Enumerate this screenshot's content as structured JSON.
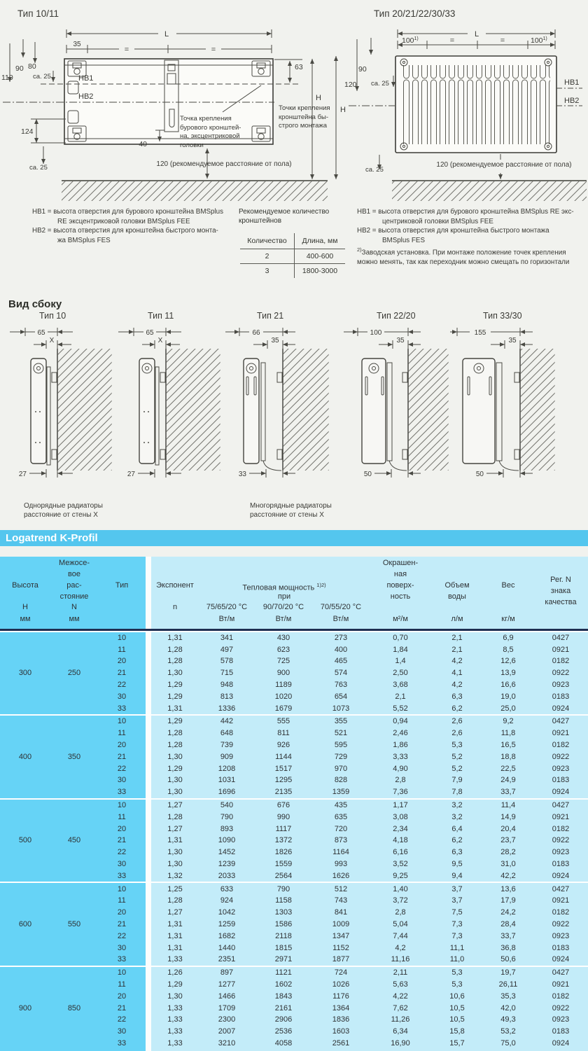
{
  "colors": {
    "section_bar": "#54c6ee",
    "table_left_column": "#66d3f6",
    "table_right_area": "#c3ecf9",
    "header_rule": "#1f2f52"
  },
  "front_views": {
    "left": {
      "title": "Тип 10/11",
      "dim_l": "L",
      "dim_35": "35",
      "eq": "=",
      "dim_90": "90",
      "dim_80": "80",
      "dim_110": "110",
      "dim_ca25": "ca. 25",
      "hb1": "HB1",
      "hb2": "HB2",
      "dim_124": "124",
      "dim_ca25_bottom": "ca. 25",
      "dim_63": "63",
      "dim_40": "40",
      "dim_h": "H",
      "floor_note": "120 (рекомендуемое расстояние от пола)",
      "drill_point_label": [
        "Точка крепления",
        "бурового кронштей-",
        "на, эксцентриковой",
        "головки"
      ],
      "quick_mount_label": [
        "Точки крепления",
        "кронштейна бы-",
        "строго монтажа"
      ]
    },
    "right": {
      "title": "Тип 20/21/22/30/33",
      "dim_l": "L",
      "dim_100": "100",
      "sup_1": "1)",
      "eq": "=",
      "dim_90": "90",
      "dim_120": "120",
      "dim_ca25": "ca. 25",
      "dim_h": "H",
      "hb1": "HB1",
      "hb2": "HB2",
      "dim_ca25_bottom": "ca. 25",
      "floor_note": "120 (рекомендуемое расстояние от пола)"
    }
  },
  "notes": {
    "left_hb1": [
      "HB1 = высота отверстия для бурового кронштейна BMSplus",
      "RE эксцентриковой головки BMSplus FEE"
    ],
    "left_hb2": [
      "HB2 = высота отверстия для кронштейна быстрого монта-",
      "жа BMSplus FES"
    ],
    "right_hb1": [
      "HB1 = высота отверстия для бурового кронштейна BMSplus RE экс-",
      "центриковой головки BMSplus FEE"
    ],
    "right_hb2": [
      "HB2 = высота отверстия для кронштейна быстрого монтажа",
      "BMSplus FES"
    ],
    "factory_sup": "2)",
    "factory": [
      "Заводская установка. При монтаже положение точек крепления",
      "можно менять, так как переходник можно смещать по горизонтали"
    ]
  },
  "bracket_table": {
    "title": [
      "Рекомендуемое количество",
      "кронштейнов"
    ],
    "col_quantity": "Количество",
    "col_length": "Длина, мм",
    "rows": [
      [
        "2",
        "400-600"
      ],
      [
        "3",
        "1800-3000"
      ]
    ]
  },
  "side_views": {
    "heading": "Вид сбоку",
    "items": [
      {
        "title": "Тип 10",
        "dim_top": "65",
        "dim_wall": "X",
        "dim_bottom": "27"
      },
      {
        "title": "Тип 11",
        "dim_top": "65",
        "dim_wall": "X",
        "dim_bottom": "27"
      },
      {
        "title": "Тип 21",
        "dim_top": "66",
        "dim_wall": "35",
        "dim_bottom": "33"
      },
      {
        "title": "Тип 22/20",
        "dim_top": "100",
        "dim_wall": "35",
        "dim_bottom": "50"
      },
      {
        "title": "Тип 33/30",
        "dim_top": "155",
        "dim_wall": "35",
        "dim_bottom": "50"
      }
    ],
    "caption_single": [
      "Однорядные радиаторы",
      "расстояние от стены X"
    ],
    "caption_multi": [
      "Многорядные радиаторы",
      "расстояние от стены X"
    ]
  },
  "section_title": "Logatrend K-Profil",
  "table": {
    "header": {
      "height": "Высота",
      "height_sym": "H",
      "height_unit": "мм",
      "spacing": [
        "Межосе-",
        "вое",
        "рас-",
        "стояние"
      ],
      "spacing_sym": "N",
      "spacing_unit": "мм",
      "type": "Тип",
      "exponent": "Экспонент",
      "exponent_sym": "n",
      "power": "Тепловая мощность",
      "power_sup": "1)2)",
      "power_at": "при",
      "temp_75": "75/65/20 °C",
      "temp_90": "90/70/20 °C",
      "temp_70": "70/55/20 °C",
      "power_unit": "Вт/м",
      "surface": [
        "Окрашен-",
        "ная",
        "поверх-",
        "ность"
      ],
      "surface_unit": "м²/м",
      "volume": [
        "Объем",
        "воды"
      ],
      "volume_unit": "л/м",
      "weight": "Вес",
      "weight_unit": "кг/м",
      "reg": [
        "Рег. N",
        "знака",
        "качества"
      ]
    },
    "groups": [
      {
        "height": "300",
        "spacing": "250",
        "rows": [
          [
            "10",
            "1,31",
            "341",
            "430",
            "273",
            "0,70",
            "2,1",
            "6,9",
            "0427"
          ],
          [
            "11",
            "1,28",
            "497",
            "623",
            "400",
            "1,84",
            "2,1",
            "8,5",
            "0921"
          ],
          [
            "20",
            "1,28",
            "578",
            "725",
            "465",
            "1,4",
            "4,2",
            "12,6",
            "0182"
          ],
          [
            "21",
            "1,30",
            "715",
            "900",
            "574",
            "2,50",
            "4,1",
            "13,9",
            "0922"
          ],
          [
            "22",
            "1,29",
            "948",
            "1189",
            "763",
            "3,68",
            "4,2",
            "16,6",
            "0923"
          ],
          [
            "30",
            "1,29",
            "813",
            "1020",
            "654",
            "2,1",
            "6,3",
            "19,0",
            "0183"
          ],
          [
            "33",
            "1,31",
            "1336",
            "1679",
            "1073",
            "5,52",
            "6,2",
            "25,0",
            "0924"
          ]
        ]
      },
      {
        "height": "400",
        "spacing": "350",
        "rows": [
          [
            "10",
            "1,29",
            "442",
            "555",
            "355",
            "0,94",
            "2,6",
            "9,2",
            "0427"
          ],
          [
            "11",
            "1,28",
            "648",
            "811",
            "521",
            "2,46",
            "2,6",
            "11,8",
            "0921"
          ],
          [
            "20",
            "1,28",
            "739",
            "926",
            "595",
            "1,86",
            "5,3",
            "16,5",
            "0182"
          ],
          [
            "21",
            "1,30",
            "909",
            "1144",
            "729",
            "3,33",
            "5,2",
            "18,8",
            "0922"
          ],
          [
            "22",
            "1,29",
            "1208",
            "1517",
            "970",
            "4,90",
            "5,2",
            "22,5",
            "0923"
          ],
          [
            "30",
            "1,30",
            "1031",
            "1295",
            "828",
            "2,8",
            "7,9",
            "24,9",
            "0183"
          ],
          [
            "33",
            "1,30",
            "1696",
            "2135",
            "1359",
            "7,36",
            "7,8",
            "33,7",
            "0924"
          ]
        ]
      },
      {
        "height": "500",
        "spacing": "450",
        "rows": [
          [
            "10",
            "1,27",
            "540",
            "676",
            "435",
            "1,17",
            "3,2",
            "11,4",
            "0427"
          ],
          [
            "11",
            "1,28",
            "790",
            "990",
            "635",
            "3,08",
            "3,2",
            "14,9",
            "0921"
          ],
          [
            "20",
            "1,27",
            "893",
            "1117",
            "720",
            "2,34",
            "6,4",
            "20,4",
            "0182"
          ],
          [
            "21",
            "1,31",
            "1090",
            "1372",
            "873",
            "4,18",
            "6,2",
            "23,7",
            "0922"
          ],
          [
            "22",
            "1,30",
            "1452",
            "1826",
            "1164",
            "6,16",
            "6,3",
            "28,2",
            "0923"
          ],
          [
            "30",
            "1,30",
            "1239",
            "1559",
            "993",
            "3,52",
            "9,5",
            "31,0",
            "0183"
          ],
          [
            "33",
            "1,32",
            "2033",
            "2564",
            "1626",
            "9,25",
            "9,4",
            "42,2",
            "0924"
          ]
        ]
      },
      {
        "height": "600",
        "spacing": "550",
        "rows": [
          [
            "10",
            "1,25",
            "633",
            "790",
            "512",
            "1,40",
            "3,7",
            "13,6",
            "0427"
          ],
          [
            "11",
            "1,28",
            "924",
            "1158",
            "743",
            "3,72",
            "3,7",
            "17,9",
            "0921"
          ],
          [
            "20",
            "1,27",
            "1042",
            "1303",
            "841",
            "2,8",
            "7,5",
            "24,2",
            "0182"
          ],
          [
            "21",
            "1,31",
            "1259",
            "1586",
            "1009",
            "5,04",
            "7,3",
            "28,4",
            "0922"
          ],
          [
            "22",
            "1,31",
            "1682",
            "2118",
            "1347",
            "7,44",
            "7,3",
            "33,7",
            "0923"
          ],
          [
            "30",
            "1,31",
            "1440",
            "1815",
            "1152",
            "4,2",
            "11,1",
            "36,8",
            "0183"
          ],
          [
            "33",
            "1,33",
            "2351",
            "2971",
            "1877",
            "11,16",
            "11,0",
            "50,6",
            "0924"
          ]
        ]
      },
      {
        "height": "900",
        "spacing": "850",
        "rows": [
          [
            "10",
            "1,26",
            "897",
            "1121",
            "724",
            "2,11",
            "5,3",
            "19,7",
            "0427"
          ],
          [
            "11",
            "1,29",
            "1277",
            "1602",
            "1026",
            "5,63",
            "5,3",
            "26,11",
            "0921"
          ],
          [
            "20",
            "1,30",
            "1466",
            "1843",
            "1176",
            "4,22",
            "10,6",
            "35,3",
            "0182"
          ],
          [
            "21",
            "1,33",
            "1709",
            "2161",
            "1364",
            "7,62",
            "10,5",
            "42,0",
            "0922"
          ],
          [
            "22",
            "1,33",
            "2300",
            "2906",
            "1836",
            "11,26",
            "10,5",
            "49,3",
            "0923"
          ],
          [
            "30",
            "1,33",
            "2007",
            "2536",
            "1603",
            "6,34",
            "15,8",
            "53,2",
            "0183"
          ],
          [
            "33",
            "1,33",
            "3210",
            "4058",
            "2561",
            "16,90",
            "15,7",
            "75,0",
            "0924"
          ]
        ]
      }
    ]
  }
}
